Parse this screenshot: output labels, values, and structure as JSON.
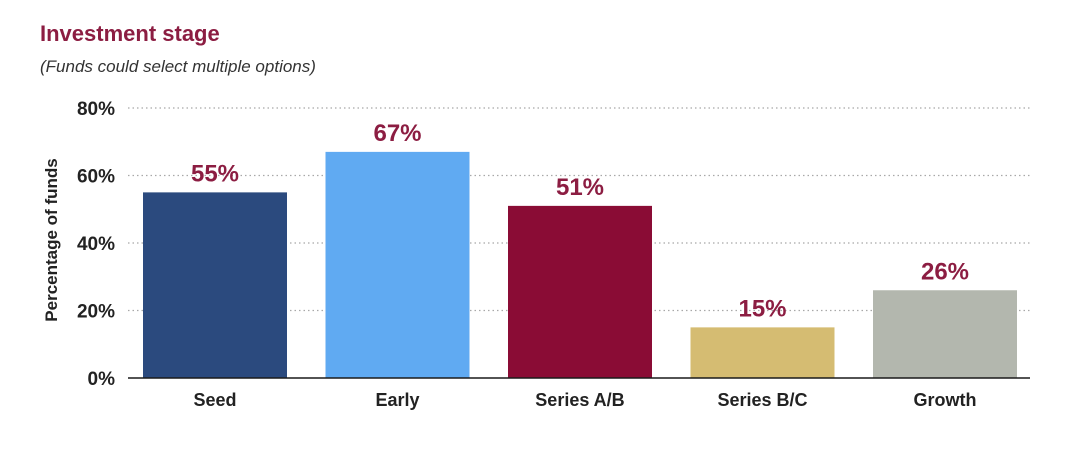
{
  "chart_data": {
    "type": "bar",
    "title": "Investment stage",
    "subtitle": "(Funds could select multiple options)",
    "ylabel": "Percentage of funds",
    "categories": [
      "Seed",
      "Early",
      "Series A/B",
      "Series B/C",
      "Growth"
    ],
    "values": [
      55,
      67,
      51,
      15,
      26
    ],
    "value_labels": [
      "55%",
      "67%",
      "51%",
      "15%",
      "26%"
    ],
    "ylim": [
      0,
      80
    ],
    "yticks": [
      0,
      20,
      40,
      60,
      80
    ],
    "ytick_labels": [
      "0%",
      "20%",
      "40%",
      "60%",
      "80%"
    ],
    "grid": true,
    "bar_colors": [
      "#2b4a7e",
      "#60aaf2",
      "#8a0c35",
      "#d5bc72",
      "#b3b7ae"
    ]
  },
  "colors": {
    "title": "#8c1d42",
    "value_label": "#8c1d42"
  }
}
